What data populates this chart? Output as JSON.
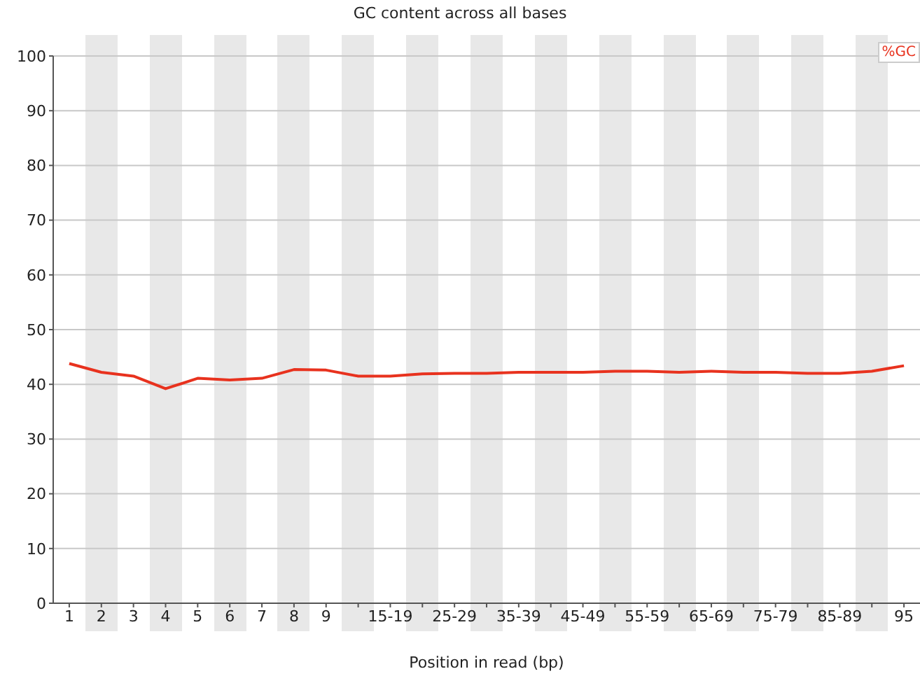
{
  "chart_data": {
    "type": "line",
    "title": "GC content across all bases",
    "xlabel": "Position in read (bp)",
    "categories": [
      "1",
      "2",
      "3",
      "4",
      "5",
      "6",
      "7",
      "8",
      "9",
      null,
      "15-19",
      null,
      "25-29",
      null,
      "35-39",
      null,
      "45-49",
      null,
      "55-59",
      null,
      "65-69",
      null,
      "75-79",
      null,
      "85-89",
      null,
      "95"
    ],
    "series": [
      {
        "name": "%GC",
        "color": "#e8321e",
        "values": [
          43.8,
          42.2,
          41.5,
          39.2,
          41.1,
          40.8,
          41.1,
          42.7,
          42.6,
          41.5,
          41.5,
          41.9,
          42.0,
          42.0,
          42.2,
          42.2,
          42.2,
          42.4,
          42.4,
          42.2,
          42.4,
          42.2,
          42.2,
          42.0,
          42.0,
          42.4,
          43.4
        ]
      }
    ],
    "ylim": [
      0,
      100
    ],
    "yticks": [
      0,
      10,
      20,
      30,
      40,
      50,
      60,
      70,
      80,
      90,
      100
    ],
    "grid": "y",
    "legend": "top right",
    "marker": "none",
    "line_style": "solid"
  }
}
